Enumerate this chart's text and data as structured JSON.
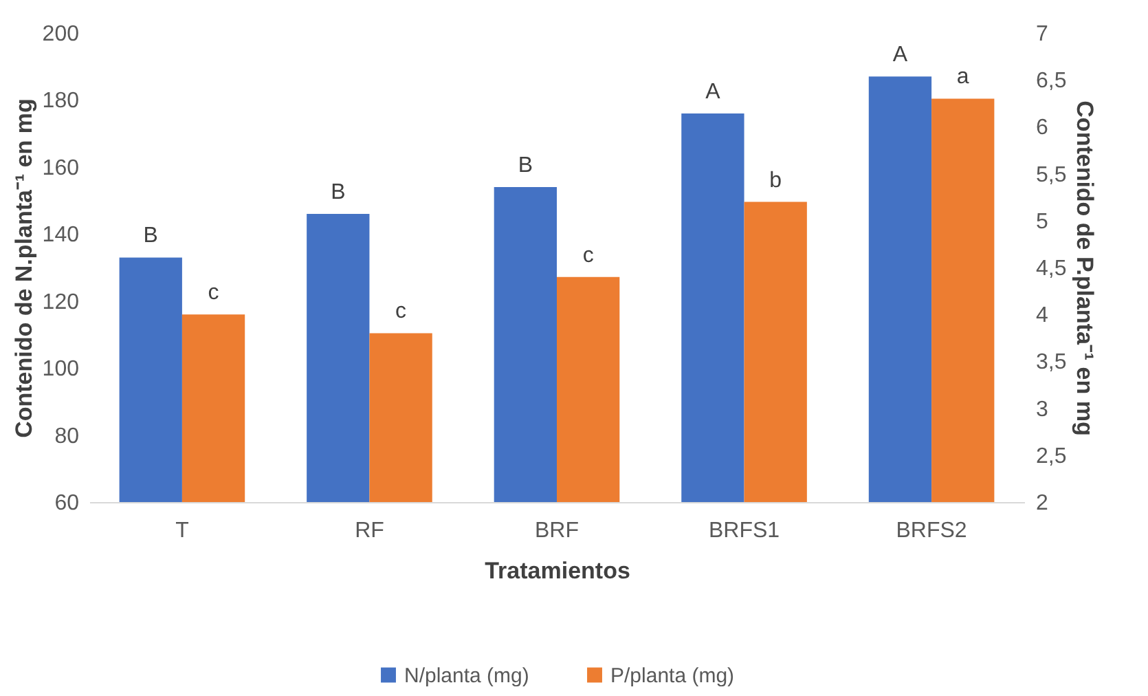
{
  "chart_data": {
    "type": "bar",
    "xlabel": "Tratamientos",
    "ylabel": "Contenido de N.planta⁻¹ en mg",
    "y2label": "Contenido de P.planta⁻¹ en mg",
    "categories": [
      "T",
      "RF",
      "BRF",
      "BRFS1",
      "BRFS2"
    ],
    "series": [
      {
        "name": "N/planta (mg)",
        "color": "#4472c4",
        "values": [
          133,
          146,
          154,
          176,
          187
        ],
        "value_labels": [
          "B",
          "B",
          "B",
          "A",
          "A"
        ]
      },
      {
        "name": "P/planta (mg)",
        "color": "#ed7d31",
        "axis": "y2",
        "values": [
          4.0,
          3.8,
          4.4,
          5.2,
          6.3
        ],
        "value_labels": [
          "c",
          "c",
          "c",
          "b",
          "a"
        ]
      }
    ],
    "ylim": [
      60,
      200
    ],
    "yticks": [
      60,
      80,
      100,
      120,
      140,
      160,
      180,
      200
    ],
    "y2lim": [
      2,
      7
    ],
    "y2ticks": [
      2,
      {
        "value": 2.5,
        "label": "2,5"
      },
      3,
      {
        "value": 3.5,
        "label": "3,5"
      },
      4,
      {
        "value": 4.5,
        "label": "4,5"
      },
      5,
      {
        "value": 5.5,
        "label": "5,5"
      },
      6,
      {
        "value": 6.5,
        "label": "6,5"
      },
      7
    ],
    "legend": "bottom"
  }
}
